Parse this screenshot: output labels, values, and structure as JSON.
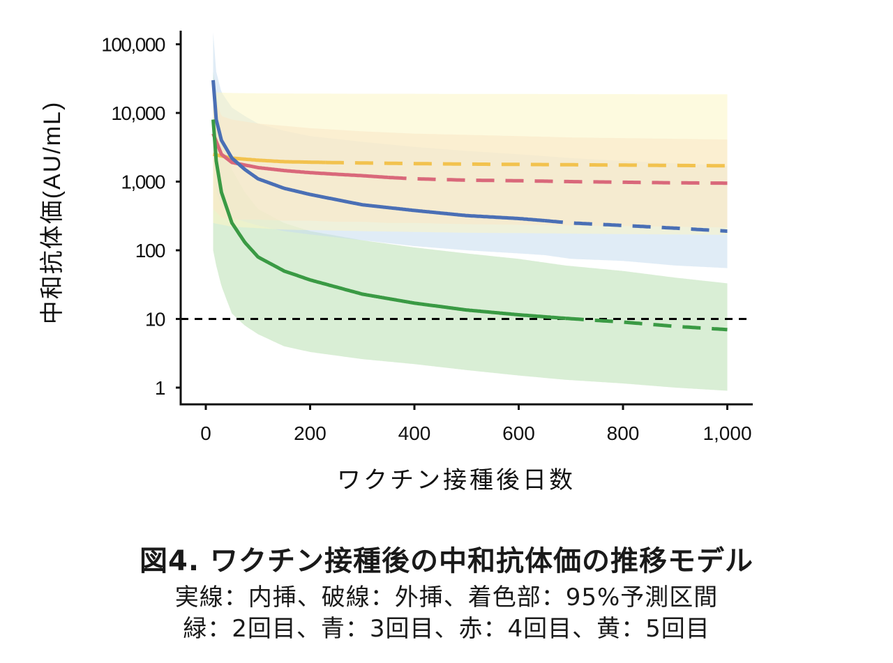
{
  "chart_data": {
    "type": "line",
    "title": "図4. ワクチン接種後の中和抗体価の推移モデル",
    "notes": [
      "実線：内挿、破線：外挿、着色部：95%予測区間",
      "緑：2回目、青：3回目、赤：4回目、黄：5回目"
    ],
    "xlabel": "ワクチン接種後日数",
    "ylabel": "中和抗体価(AU/mL)",
    "x_ticks": [
      0,
      200,
      400,
      600,
      800,
      1000
    ],
    "x_tick_labels": [
      "0",
      "200",
      "400",
      "600",
      "800",
      "1,000"
    ],
    "y_ticks": [
      1,
      10,
      100,
      1000,
      10000,
      100000
    ],
    "y_tick_labels": [
      "1",
      "10",
      "100",
      "1,000",
      "10,000",
      "100,000"
    ],
    "y_scale": "log",
    "xlim": [
      -45,
      1050
    ],
    "ylim": [
      0.55,
      160000
    ],
    "reference_line": {
      "y": 10,
      "style": "dashed",
      "color": "#000000"
    },
    "series": [
      {
        "name": "",
        "color": "#3a9a44",
        "band_color": "#b9e0b2",
        "interp_end_x": 690,
        "x": [
          14,
          20,
          30,
          50,
          75,
          100,
          150,
          200,
          300,
          400,
          500,
          600,
          690,
          800,
          900,
          1000
        ],
        "y": [
          8000,
          2000,
          700,
          250,
          130,
          80,
          50,
          37,
          23,
          17,
          13.5,
          11.5,
          10.2,
          9,
          7.8,
          7
        ],
        "lower": [
          100,
          60,
          30,
          12,
          8,
          6,
          4,
          3.3,
          2.6,
          2.2,
          1.8,
          1.5,
          1.3,
          1.15,
          1.0,
          0.9
        ],
        "upper": [
          40000,
          20000,
          5000,
          1500,
          700,
          400,
          250,
          190,
          140,
          110,
          90,
          75,
          60,
          50,
          40,
          33
        ]
      },
      {
        "name": "",
        "color": "#4a6fb5",
        "band_color": "#c7dcef",
        "interp_end_x": 650,
        "x": [
          14,
          20,
          30,
          50,
          75,
          100,
          150,
          200,
          300,
          400,
          500,
          600,
          650,
          700,
          800,
          900,
          1000
        ],
        "y": [
          30000,
          8000,
          4000,
          2200,
          1500,
          1100,
          800,
          650,
          460,
          380,
          320,
          290,
          270,
          250,
          230,
          210,
          190
        ],
        "lower": [
          2000,
          700,
          450,
          300,
          260,
          230,
          190,
          170,
          140,
          115,
          100,
          90,
          85,
          75,
          70,
          60,
          55
        ],
        "upper": [
          150000,
          40000,
          20000,
          12000,
          9000,
          7000,
          5500,
          4600,
          3800,
          3200,
          2800,
          2500,
          2350,
          2200,
          2000,
          1850,
          1700
        ]
      },
      {
        "name": "",
        "color": "#d9687a",
        "band_color": "#f7d4c8",
        "interp_end_x": 350,
        "x": [
          14,
          30,
          50,
          100,
          150,
          200,
          250,
          300,
          350,
          400,
          500,
          600,
          700,
          800,
          900,
          1000
        ],
        "y": [
          5000,
          2500,
          1900,
          1600,
          1450,
          1350,
          1280,
          1220,
          1150,
          1100,
          1050,
          1030,
          1000,
          980,
          960,
          950
        ],
        "lower": [
          400,
          300,
          280,
          280,
          270,
          270,
          260,
          260,
          250,
          250,
          240,
          235,
          230,
          225,
          220,
          215
        ],
        "upper": [
          20000,
          9000,
          8000,
          7000,
          6500,
          6000,
          5700,
          5400,
          5200,
          5000,
          4800,
          4600,
          4400,
          4300,
          4200,
          4100
        ]
      },
      {
        "name": "",
        "color": "#f2c24e",
        "band_color": "#fbf6c5",
        "interp_end_x": 230,
        "x": [
          14,
          50,
          100,
          150,
          230,
          300,
          400,
          500,
          600,
          700,
          800,
          900,
          1000
        ],
        "y": [
          2500,
          2200,
          2050,
          1950,
          1900,
          1870,
          1830,
          1800,
          1780,
          1760,
          1740,
          1720,
          1700
        ],
        "lower": [
          250,
          220,
          210,
          200,
          195,
          190,
          185,
          180,
          178,
          175,
          172,
          170,
          168
        ],
        "upper": [
          20000,
          19500,
          19300,
          19200,
          19100,
          19000,
          19000,
          18900,
          18900,
          18800,
          18800,
          18700,
          18700
        ]
      }
    ]
  }
}
